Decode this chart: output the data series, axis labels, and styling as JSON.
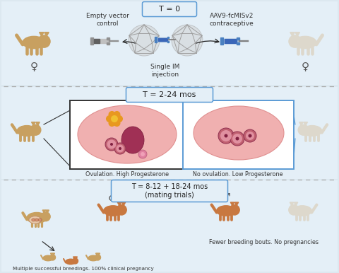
{
  "bg_color": "#dce8f0",
  "panel_bg": "#e4eff7",
  "title_box_edge": "#5b9bd5",
  "dashed_line_color": "#aaaaaa",
  "panel1_label": "T = 0",
  "panel1_left_label": "Empty vector\ncontrol",
  "panel1_right_label": "AAV9-fcMISv2\ncontraceptive",
  "panel1_bottom_label": "Single IM\ninjection",
  "panel2_label": "T = 2-24 mos",
  "panel2_left_caption": "Ovulation. High Progesterone",
  "panel2_right_caption": "No ovulation. Low Progesterone",
  "panel3_label": "T = 8-12 + 18-24 mos\n(mating trials)",
  "panel3_left_caption": "Multiple successful breedings. 100% clinical pregnancy",
  "panel3_right_caption": "Fewer breeding bouts. No pregnancies",
  "cat_tan_color": "#c8a060",
  "cat_white_color": "#ddd8cc",
  "cat_orange_color": "#c87840",
  "female_symbol": "♀",
  "male_symbol": "♂"
}
